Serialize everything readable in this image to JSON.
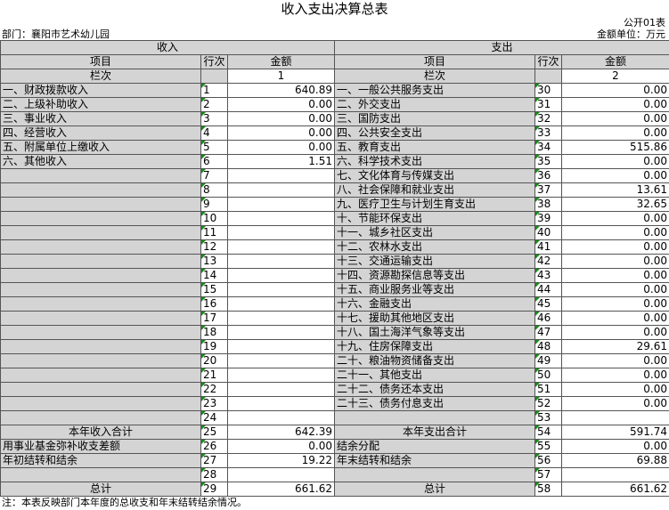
{
  "title": "收入支出决算总表",
  "form_no": "公开01表",
  "department": "部门：襄阳市艺术幼儿园",
  "unit": "金额单位：万元",
  "sections": [
    "收入",
    "支出"
  ],
  "columns": [
    "项目",
    "行次",
    "金额",
    "项目",
    "行次",
    "金额"
  ],
  "rows": [
    [
      "栏次",
      null,
      "1",
      "栏次",
      null,
      "2"
    ],
    [
      "一、财政拨款收入",
      "1",
      "640.89",
      "一、一般公共服务支出",
      "30",
      "0.00"
    ],
    [
      "二、上级补助收入",
      "2",
      "0.00",
      "二、外交支出",
      "31",
      "0.00"
    ],
    [
      "三、事业收入",
      "3",
      "0.00",
      "三、国防支出",
      "32",
      "0.00"
    ],
    [
      "四、经营收入",
      "4",
      "0.00",
      "四、公共安全支出",
      "33",
      "0.00"
    ],
    [
      "五、附属单位上缴收入",
      "5",
      "0.00",
      "五、教育支出",
      "34",
      "515.86"
    ],
    [
      "六、其他收入",
      "6",
      "1.51",
      "六、科学技术支出",
      "35",
      "0.00"
    ],
    [
      null,
      "7",
      null,
      "七、文化体育与传媒支出",
      "36",
      "0.00"
    ],
    [
      null,
      "8",
      null,
      "八、社会保障和就业支出",
      "37",
      "13.61"
    ],
    [
      null,
      "9",
      null,
      "九、医疗卫生与计划生育支出",
      "38",
      "32.65"
    ],
    [
      null,
      "10",
      null,
      "十、节能环保支出",
      "39",
      "0.00"
    ],
    [
      null,
      "11",
      null,
      "十一、城乡社区支出",
      "40",
      "0.00"
    ],
    [
      null,
      "12",
      null,
      "十二、农林水支出",
      "41",
      "0.00"
    ],
    [
      null,
      "13",
      null,
      "十三、交通运输支出",
      "42",
      "0.00"
    ],
    [
      null,
      "14",
      null,
      "十四、资源勘探信息等支出",
      "43",
      "0.00"
    ],
    [
      null,
      "15",
      null,
      "十五、商业服务业等支出",
      "44",
      "0.00"
    ],
    [
      null,
      "16",
      null,
      "十六、金融支出",
      "45",
      "0.00"
    ],
    [
      null,
      "17",
      null,
      "十七、援助其他地区支出",
      "46",
      "0.00"
    ],
    [
      null,
      "18",
      null,
      "十八、国土海洋气象等支出",
      "47",
      "0.00"
    ],
    [
      null,
      "19",
      null,
      "十九、住房保障支出",
      "48",
      "29.61"
    ],
    [
      null,
      "20",
      null,
      "二十、粮油物资储备支出",
      "49",
      "0.00"
    ],
    [
      null,
      "21",
      null,
      "二十一、其他支出",
      "50",
      "0.00"
    ],
    [
      null,
      "22",
      null,
      "二十二、债务还本支出",
      "51",
      "0.00"
    ],
    [
      null,
      "23",
      null,
      "二十三、债务付息支出",
      "52",
      "0.00"
    ],
    [
      null,
      "24",
      null,
      null,
      "53",
      null
    ],
    [
      "本年收入合计",
      "25",
      "642.39",
      "本年支出合计",
      "54",
      "591.74"
    ],
    [
      "用事业基金弥补收支差额",
      "26",
      "0.00",
      "结余分配",
      "55",
      "0.00"
    ],
    [
      "年初结转和结余",
      "27",
      "19.22",
      "年末结转和结余",
      "56",
      "69.88"
    ],
    [
      null,
      "28",
      null,
      null,
      "57",
      null
    ],
    [
      "总计",
      "29",
      "661.62",
      "总计",
      "58",
      "661.62"
    ]
  ],
  "note": "注：本表反映部门本年度的总收支和年末结转结余情况。"
}
